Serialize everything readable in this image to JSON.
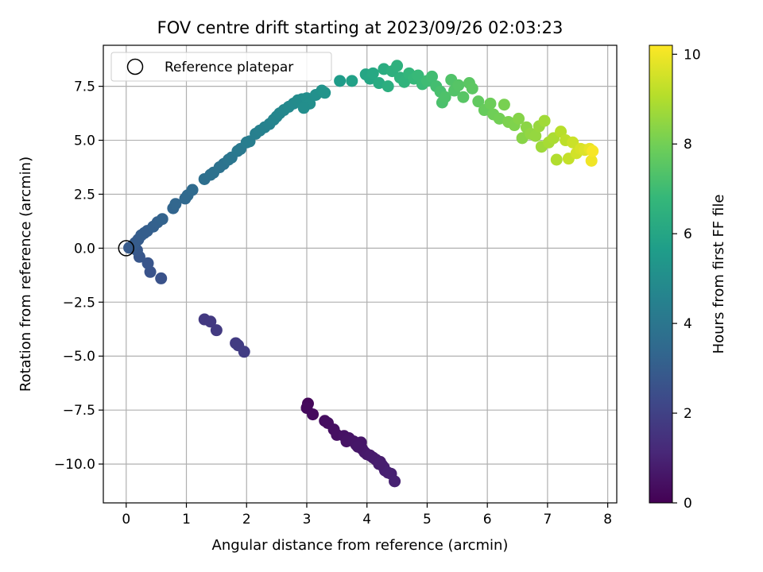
{
  "chart_data": {
    "type": "scatter",
    "title": "FOV centre drift starting at 2023/09/26 02:03:23",
    "xlabel": "Angular distance from reference (arcmin)",
    "ylabel": "Rotation from reference (arcmin)",
    "xlim": [
      -0.38,
      8.15
    ],
    "ylim": [
      -11.8,
      9.4
    ],
    "xticks": [
      0,
      1,
      2,
      3,
      4,
      5,
      6,
      7,
      8
    ],
    "yticks": [
      -10.0,
      -7.5,
      -5.0,
      -2.5,
      0.0,
      2.5,
      5.0,
      7.5
    ],
    "xtick_labels": [
      "0",
      "1",
      "2",
      "3",
      "4",
      "5",
      "6",
      "7",
      "8"
    ],
    "ytick_labels": [
      "−10.0",
      "−7.5",
      "−5.0",
      "−2.5",
      "0.0",
      "2.5",
      "5.0",
      "7.5"
    ],
    "grid": true,
    "legend": {
      "position": "top-left",
      "entries": [
        "Reference platepar"
      ]
    },
    "reference_point": {
      "x": 0.0,
      "y": 0.0
    },
    "colorbar": {
      "label": "Hours from first FF file",
      "min": 0,
      "max": 10.2,
      "ticks": [
        0,
        2,
        4,
        6,
        8,
        10
      ],
      "tick_labels": [
        "0",
        "2",
        "4",
        "6",
        "8",
        "10"
      ],
      "colormap": "viridis",
      "colors": [
        "#440154",
        "#482878",
        "#3e4989",
        "#31688e",
        "#26828e",
        "#1f9e89",
        "#35b779",
        "#6ece58",
        "#b5de2b",
        "#fde725"
      ]
    },
    "points": [
      {
        "x": 3.02,
        "y": -7.2,
        "h": 0.2
      },
      {
        "x": 3.0,
        "y": -7.4,
        "h": 0.25
      },
      {
        "x": 3.1,
        "y": -7.7,
        "h": 0.3
      },
      {
        "x": 3.3,
        "y": -8.0,
        "h": 0.35
      },
      {
        "x": 3.35,
        "y": -8.1,
        "h": 0.38
      },
      {
        "x": 3.45,
        "y": -8.4,
        "h": 0.4
      },
      {
        "x": 3.5,
        "y": -8.65,
        "h": 0.45
      },
      {
        "x": 3.62,
        "y": -8.7,
        "h": 0.5
      },
      {
        "x": 3.7,
        "y": -8.8,
        "h": 0.52
      },
      {
        "x": 3.66,
        "y": -8.95,
        "h": 0.55
      },
      {
        "x": 3.78,
        "y": -8.95,
        "h": 0.58
      },
      {
        "x": 3.82,
        "y": -9.1,
        "h": 0.6
      },
      {
        "x": 3.9,
        "y": -9.0,
        "h": 0.62
      },
      {
        "x": 3.92,
        "y": -9.3,
        "h": 0.65
      },
      {
        "x": 3.96,
        "y": -9.45,
        "h": 0.68
      },
      {
        "x": 4.0,
        "y": -9.55,
        "h": 0.7
      },
      {
        "x": 4.05,
        "y": -9.6,
        "h": 0.72
      },
      {
        "x": 4.1,
        "y": -9.7,
        "h": 0.75
      },
      {
        "x": 4.15,
        "y": -9.8,
        "h": 0.78
      },
      {
        "x": 4.22,
        "y": -9.9,
        "h": 0.8
      },
      {
        "x": 4.25,
        "y": -10.05,
        "h": 0.82
      },
      {
        "x": 4.28,
        "y": -10.15,
        "h": 0.85
      },
      {
        "x": 4.3,
        "y": -10.3,
        "h": 0.88
      },
      {
        "x": 4.35,
        "y": -10.4,
        "h": 0.9
      },
      {
        "x": 4.4,
        "y": -10.45,
        "h": 0.92
      },
      {
        "x": 4.46,
        "y": -10.8,
        "h": 0.95
      },
      {
        "x": 4.2,
        "y": -10.0,
        "h": 0.83
      },
      {
        "x": 3.85,
        "y": -9.2,
        "h": 0.63
      },
      {
        "x": 1.3,
        "y": -3.3,
        "h": 1.7
      },
      {
        "x": 1.4,
        "y": -3.4,
        "h": 1.72
      },
      {
        "x": 1.5,
        "y": -3.8,
        "h": 1.75
      },
      {
        "x": 1.82,
        "y": -4.4,
        "h": 1.8
      },
      {
        "x": 1.86,
        "y": -4.5,
        "h": 1.82
      },
      {
        "x": 1.96,
        "y": -4.8,
        "h": 1.85
      },
      {
        "x": 0.58,
        "y": -1.4,
        "h": 2.6
      },
      {
        "x": 0.4,
        "y": -1.1,
        "h": 2.65
      },
      {
        "x": 0.36,
        "y": -0.7,
        "h": 2.7
      },
      {
        "x": 0.22,
        "y": -0.4,
        "h": 2.75
      },
      {
        "x": 0.18,
        "y": -0.1,
        "h": 2.8
      },
      {
        "x": 0.12,
        "y": 0.0,
        "h": 2.85
      },
      {
        "x": 0.05,
        "y": 0.02,
        "h": 2.9
      },
      {
        "x": 0.1,
        "y": 0.1,
        "h": 2.92
      },
      {
        "x": 0.15,
        "y": 0.25,
        "h": 2.95
      },
      {
        "x": 0.2,
        "y": 0.4,
        "h": 2.97
      },
      {
        "x": 0.25,
        "y": 0.6,
        "h": 3.0
      },
      {
        "x": 0.3,
        "y": 0.7,
        "h": 3.02
      },
      {
        "x": 0.35,
        "y": 0.8,
        "h": 3.05
      },
      {
        "x": 0.45,
        "y": 1.0,
        "h": 3.1
      },
      {
        "x": 0.52,
        "y": 1.2,
        "h": 3.15
      },
      {
        "x": 0.6,
        "y": 1.35,
        "h": 3.2
      },
      {
        "x": 0.78,
        "y": 1.85,
        "h": 3.3
      },
      {
        "x": 0.82,
        "y": 2.05,
        "h": 3.35
      },
      {
        "x": 0.98,
        "y": 2.3,
        "h": 3.45
      },
      {
        "x": 1.02,
        "y": 2.45,
        "h": 3.5
      },
      {
        "x": 1.1,
        "y": 2.7,
        "h": 3.55
      },
      {
        "x": 1.3,
        "y": 3.2,
        "h": 3.7
      },
      {
        "x": 1.4,
        "y": 3.4,
        "h": 3.75
      },
      {
        "x": 1.45,
        "y": 3.5,
        "h": 3.8
      },
      {
        "x": 1.55,
        "y": 3.75,
        "h": 3.85
      },
      {
        "x": 1.62,
        "y": 3.9,
        "h": 3.9
      },
      {
        "x": 1.7,
        "y": 4.1,
        "h": 3.95
      },
      {
        "x": 1.75,
        "y": 4.2,
        "h": 4.0
      },
      {
        "x": 1.85,
        "y": 4.5,
        "h": 4.1
      },
      {
        "x": 1.9,
        "y": 4.6,
        "h": 4.15
      },
      {
        "x": 2.0,
        "y": 4.9,
        "h": 4.25
      },
      {
        "x": 2.05,
        "y": 4.95,
        "h": 4.3
      },
      {
        "x": 2.15,
        "y": 5.3,
        "h": 4.4
      },
      {
        "x": 2.22,
        "y": 5.45,
        "h": 4.45
      },
      {
        "x": 2.3,
        "y": 5.6,
        "h": 4.5
      },
      {
        "x": 2.38,
        "y": 5.75,
        "h": 4.55
      },
      {
        "x": 2.45,
        "y": 5.95,
        "h": 4.6
      },
      {
        "x": 2.5,
        "y": 6.1,
        "h": 4.65
      },
      {
        "x": 2.55,
        "y": 6.25,
        "h": 4.7
      },
      {
        "x": 2.62,
        "y": 6.4,
        "h": 4.75
      },
      {
        "x": 2.7,
        "y": 6.55,
        "h": 4.8
      },
      {
        "x": 2.78,
        "y": 6.7,
        "h": 4.85
      },
      {
        "x": 2.85,
        "y": 6.85,
        "h": 4.9
      },
      {
        "x": 2.92,
        "y": 6.9,
        "h": 4.95
      },
      {
        "x": 3.0,
        "y": 6.95,
        "h": 5.0
      },
      {
        "x": 3.05,
        "y": 6.7,
        "h": 5.05
      },
      {
        "x": 2.95,
        "y": 6.5,
        "h": 5.02
      },
      {
        "x": 3.15,
        "y": 7.1,
        "h": 5.1
      },
      {
        "x": 3.25,
        "y": 7.3,
        "h": 5.2
      },
      {
        "x": 3.3,
        "y": 7.2,
        "h": 5.25
      },
      {
        "x": 3.55,
        "y": 7.75,
        "h": 5.6
      },
      {
        "x": 3.75,
        "y": 7.75,
        "h": 5.8
      },
      {
        "x": 3.98,
        "y": 8.05,
        "h": 6.0
      },
      {
        "x": 4.05,
        "y": 7.85,
        "h": 6.05
      },
      {
        "x": 4.1,
        "y": 8.1,
        "h": 6.1
      },
      {
        "x": 4.2,
        "y": 7.65,
        "h": 6.2
      },
      {
        "x": 4.28,
        "y": 8.3,
        "h": 6.3
      },
      {
        "x": 4.35,
        "y": 7.5,
        "h": 6.4
      },
      {
        "x": 4.42,
        "y": 8.2,
        "h": 6.45
      },
      {
        "x": 4.5,
        "y": 8.45,
        "h": 6.5
      },
      {
        "x": 4.55,
        "y": 7.9,
        "h": 6.55
      },
      {
        "x": 4.62,
        "y": 7.7,
        "h": 6.6
      },
      {
        "x": 4.7,
        "y": 8.1,
        "h": 6.7
      },
      {
        "x": 4.78,
        "y": 7.85,
        "h": 6.8
      },
      {
        "x": 4.85,
        "y": 8.0,
        "h": 6.85
      },
      {
        "x": 4.92,
        "y": 7.6,
        "h": 6.9
      },
      {
        "x": 5.0,
        "y": 7.75,
        "h": 7.0
      },
      {
        "x": 5.08,
        "y": 7.95,
        "h": 7.05
      },
      {
        "x": 5.15,
        "y": 7.5,
        "h": 7.1
      },
      {
        "x": 5.22,
        "y": 7.25,
        "h": 7.2
      },
      {
        "x": 5.25,
        "y": 6.75,
        "h": 7.25
      },
      {
        "x": 5.3,
        "y": 7.0,
        "h": 7.3
      },
      {
        "x": 5.4,
        "y": 7.8,
        "h": 7.35
      },
      {
        "x": 5.45,
        "y": 7.3,
        "h": 7.4
      },
      {
        "x": 5.52,
        "y": 7.55,
        "h": 7.45
      },
      {
        "x": 5.6,
        "y": 7.0,
        "h": 7.5
      },
      {
        "x": 5.7,
        "y": 7.65,
        "h": 7.55
      },
      {
        "x": 5.75,
        "y": 7.4,
        "h": 7.6
      },
      {
        "x": 5.85,
        "y": 6.8,
        "h": 7.7
      },
      {
        "x": 5.95,
        "y": 6.4,
        "h": 7.8
      },
      {
        "x": 6.05,
        "y": 6.7,
        "h": 7.9
      },
      {
        "x": 6.1,
        "y": 6.2,
        "h": 7.95
      },
      {
        "x": 6.2,
        "y": 6.0,
        "h": 8.0
      },
      {
        "x": 6.28,
        "y": 6.65,
        "h": 8.1
      },
      {
        "x": 6.35,
        "y": 5.85,
        "h": 8.15
      },
      {
        "x": 6.45,
        "y": 5.7,
        "h": 8.2
      },
      {
        "x": 6.52,
        "y": 6.0,
        "h": 8.3
      },
      {
        "x": 6.58,
        "y": 5.1,
        "h": 8.35
      },
      {
        "x": 6.65,
        "y": 5.6,
        "h": 8.4
      },
      {
        "x": 6.72,
        "y": 5.3,
        "h": 8.5
      },
      {
        "x": 6.8,
        "y": 5.2,
        "h": 8.55
      },
      {
        "x": 6.86,
        "y": 5.65,
        "h": 8.6
      },
      {
        "x": 6.9,
        "y": 4.7,
        "h": 8.7
      },
      {
        "x": 6.95,
        "y": 5.9,
        "h": 8.75
      },
      {
        "x": 7.02,
        "y": 4.9,
        "h": 8.85
      },
      {
        "x": 7.1,
        "y": 5.1,
        "h": 8.9
      },
      {
        "x": 7.15,
        "y": 4.1,
        "h": 9.0
      },
      {
        "x": 7.22,
        "y": 5.4,
        "h": 9.1
      },
      {
        "x": 7.3,
        "y": 5.0,
        "h": 9.2
      },
      {
        "x": 7.35,
        "y": 4.15,
        "h": 9.3
      },
      {
        "x": 7.42,
        "y": 4.9,
        "h": 9.4
      },
      {
        "x": 7.48,
        "y": 4.4,
        "h": 9.5
      },
      {
        "x": 7.55,
        "y": 4.6,
        "h": 9.6
      },
      {
        "x": 7.62,
        "y": 4.55,
        "h": 9.7
      },
      {
        "x": 7.7,
        "y": 4.6,
        "h": 9.85
      },
      {
        "x": 7.73,
        "y": 4.05,
        "h": 10.0
      },
      {
        "x": 7.75,
        "y": 4.5,
        "h": 10.1
      }
    ]
  }
}
